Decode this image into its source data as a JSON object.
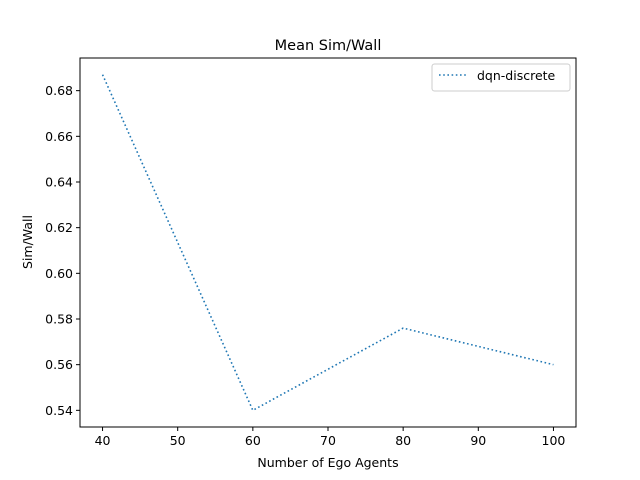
{
  "chart_data": {
    "type": "line",
    "title": "Mean Sim/Wall",
    "xlabel": "Number of Ego Agents",
    "ylabel": "Sim/Wall",
    "x": [
      40,
      60,
      80,
      100
    ],
    "series": [
      {
        "name": "dqn-discrete",
        "values": [
          0.687,
          0.54,
          0.576,
          0.56
        ],
        "color": "#1f77b4",
        "linestyle": "dotted"
      }
    ],
    "xlim": [
      37,
      103
    ],
    "ylim": [
      0.5327,
      0.6943
    ],
    "xticks": [
      40,
      50,
      60,
      70,
      80,
      90,
      100
    ],
    "yticks": [
      0.54,
      0.56,
      0.58,
      0.6,
      0.62,
      0.64,
      0.66,
      0.68
    ],
    "ytick_labels": [
      "0.54",
      "0.56",
      "0.58",
      "0.60",
      "0.62",
      "0.64",
      "0.66",
      "0.68"
    ],
    "grid": false,
    "legend_position": "top-right"
  }
}
